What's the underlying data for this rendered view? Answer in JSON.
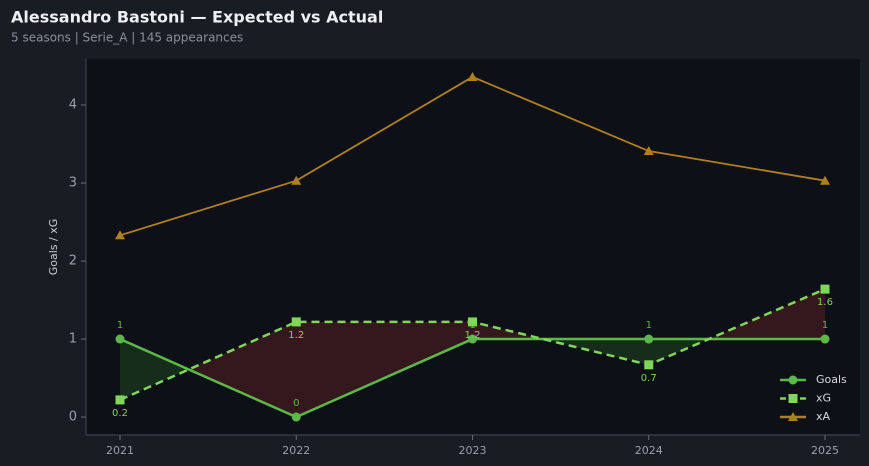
{
  "chart_data": {
    "type": "line",
    "title": "Alessandro Bastoni — Expected vs Actual",
    "subtitle": "5 seasons | Serie_A | 145 appearances",
    "ylabel": "Goals / xG",
    "categories": [
      "2021",
      "2022",
      "2023",
      "2024",
      "2025"
    ],
    "series": [
      {
        "name": "Goals",
        "color": "#5cb848",
        "values": [
          1,
          0,
          1,
          1,
          1
        ],
        "marker": "circle",
        "dash": false,
        "labels": true
      },
      {
        "name": "xG",
        "color": "#7fd65a",
        "values": [
          0.22,
          1.22,
          1.22,
          0.67,
          1.64
        ],
        "value_labels": [
          "0.2",
          "1.2",
          "1.2",
          "0.7",
          "1.6"
        ],
        "marker": "square",
        "dash": true,
        "labels": true
      },
      {
        "name": "xA",
        "color": "#b07f1e",
        "values": [
          2.33,
          3.03,
          4.36,
          3.41,
          3.03
        ],
        "marker": "triangle",
        "dash": false,
        "labels": false
      }
    ],
    "ylim": [
      -0.23,
      4.59
    ],
    "yticks": [
      0,
      1,
      2,
      3,
      4
    ],
    "legend": "lower right"
  }
}
